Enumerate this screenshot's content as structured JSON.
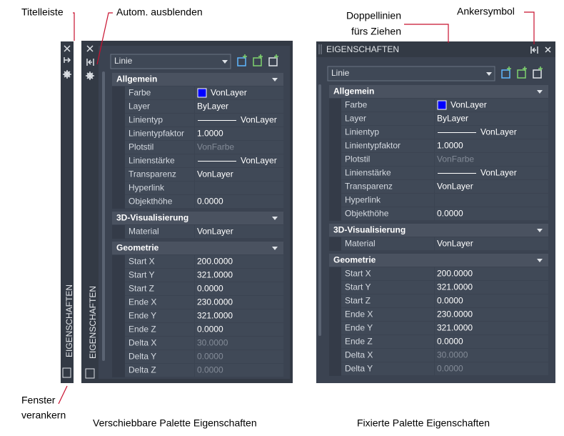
{
  "annotations": {
    "title_bar": "Titelleiste",
    "auto_hide": "Autom. ausblenden",
    "dock_window": [
      "Fenster",
      "verankern"
    ],
    "drag_grip": [
      "Doppellinien",
      "fürs Ziehen"
    ],
    "anchor_icon": "Ankersymbol"
  },
  "collapsed_palette": {
    "title": "EIGENSCHAFTEN"
  },
  "floating_palette": {
    "title": "EIGENSCHAFTEN",
    "dropdown": "Linie",
    "sections": [
      {
        "name": "Allgemein",
        "rows": [
          {
            "label": "Farbe",
            "value": "VonLayer",
            "swatch": "#0000ff"
          },
          {
            "label": "Layer",
            "value": "ByLayer"
          },
          {
            "label": "Linientyp",
            "value": "VonLayer",
            "line_sample": true
          },
          {
            "label": "Linientypfaktor",
            "value": "1.0000"
          },
          {
            "label": "Plotstil",
            "value": "VonFarbe",
            "disabled": true
          },
          {
            "label": "Linienstärke",
            "value": "VonLayer",
            "line_sample": true
          },
          {
            "label": "Transparenz",
            "value": "VonLayer"
          },
          {
            "label": "Hyperlink"
          },
          {
            "label": "Objekthöhe",
            "value": "0.0000"
          }
        ]
      },
      {
        "name": "3D-Visualisierung",
        "rows": [
          {
            "label": "Material",
            "value": "VonLayer"
          }
        ]
      },
      {
        "name": "Geometrie",
        "rows": [
          {
            "label": "Start X",
            "value": "200.0000"
          },
          {
            "label": "Start Y",
            "value": "321.0000"
          },
          {
            "label": "Start Z",
            "value": "0.0000"
          },
          {
            "label": "Ende X",
            "value": "230.0000"
          },
          {
            "label": "Ende Y",
            "value": "321.0000"
          },
          {
            "label": "Ende Z",
            "value": "0.0000"
          },
          {
            "label": "Delta X",
            "value": "30.0000",
            "disabled": true
          },
          {
            "label": "Delta Y",
            "value": "0.0000",
            "disabled": true
          },
          {
            "label": "Delta Z",
            "value": "0.0000",
            "disabled": true
          }
        ]
      }
    ]
  },
  "docked_palette": {
    "title": "EIGENSCHAFTEN",
    "dropdown": "Linie",
    "sections": [
      {
        "name": "Allgemein",
        "rows": [
          {
            "label": "Farbe",
            "value": "VonLayer",
            "swatch": "#0000ff"
          },
          {
            "label": "Layer",
            "value": "ByLayer"
          },
          {
            "label": "Linientyp",
            "value": "VonLayer",
            "line_sample": true
          },
          {
            "label": "Linientypfaktor",
            "value": "1.0000"
          },
          {
            "label": "Plotstil",
            "value": "VonFarbe",
            "disabled": true
          },
          {
            "label": "Linienstärke",
            "value": "VonLayer",
            "line_sample": true
          },
          {
            "label": "Transparenz",
            "value": "VonLayer"
          },
          {
            "label": "Hyperlink"
          },
          {
            "label": "Objekthöhe",
            "value": "0.0000"
          }
        ]
      },
      {
        "name": "3D-Visualisierung",
        "rows": [
          {
            "label": "Material",
            "value": "VonLayer"
          }
        ]
      },
      {
        "name": "Geometrie",
        "rows": [
          {
            "label": "Start X",
            "value": "200.0000"
          },
          {
            "label": "Start Y",
            "value": "321.0000"
          },
          {
            "label": "Start Z",
            "value": "0.0000"
          },
          {
            "label": "Ende X",
            "value": "230.0000"
          },
          {
            "label": "Ende Y",
            "value": "321.0000"
          },
          {
            "label": "Ende Z",
            "value": "0.0000"
          },
          {
            "label": "Delta X",
            "value": "30.0000",
            "disabled": true
          },
          {
            "label": "Delta Y",
            "value": "0.0000",
            "disabled": true
          }
        ]
      }
    ]
  },
  "captions": {
    "floating": "Verschiebbare Palette Eigenschaften",
    "docked": "Fixierte Palette Eigenschaften"
  }
}
